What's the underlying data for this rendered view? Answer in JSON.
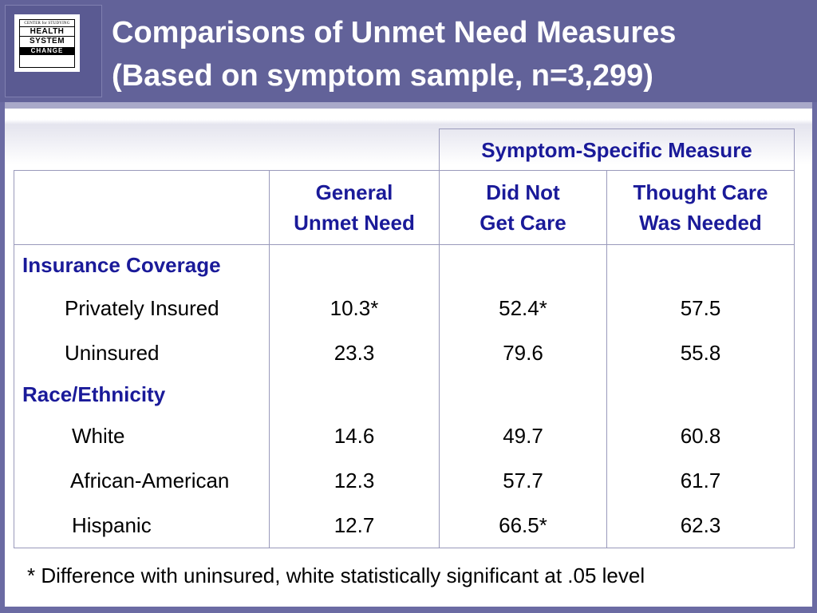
{
  "slide": {
    "title_line1": "Comparisons of Unmet Need Measures",
    "title_line2": "(Based on symptom sample, n=3,299)",
    "logo": {
      "small": "CENTER for STUDYING",
      "word1": "HEALTH",
      "word2": "SYSTEM",
      "word3": "CHANGE"
    }
  },
  "table": {
    "group_header": "Symptom-Specific Measure",
    "columns": [
      {
        "line1": "General",
        "line2": "Unmet Need"
      },
      {
        "line1": "Did Not",
        "line2": "Get Care"
      },
      {
        "line1": "Thought Care",
        "line2": "Was Needed"
      }
    ],
    "sections": [
      {
        "label": "Insurance Coverage",
        "rows": [
          {
            "label": "Privately Insured",
            "values": [
              "10.3*",
              "52.4*",
              "57.5"
            ]
          },
          {
            "label": "Uninsured",
            "values": [
              "23.3",
              "79.6",
              "55.8"
            ]
          }
        ]
      },
      {
        "label": "Race/Ethnicity",
        "rows": [
          {
            "label": "White",
            "values": [
              "14.6",
              "49.7",
              "60.8"
            ]
          },
          {
            "label": "African-American",
            "values": [
              "12.3",
              "57.7",
              "61.7"
            ]
          },
          {
            "label": "Hispanic",
            "values": [
              "12.7",
              "66.5*",
              "62.3"
            ]
          }
        ]
      }
    ]
  },
  "footnote": "* Difference with uninsured, white statistically significant at .05 level"
}
